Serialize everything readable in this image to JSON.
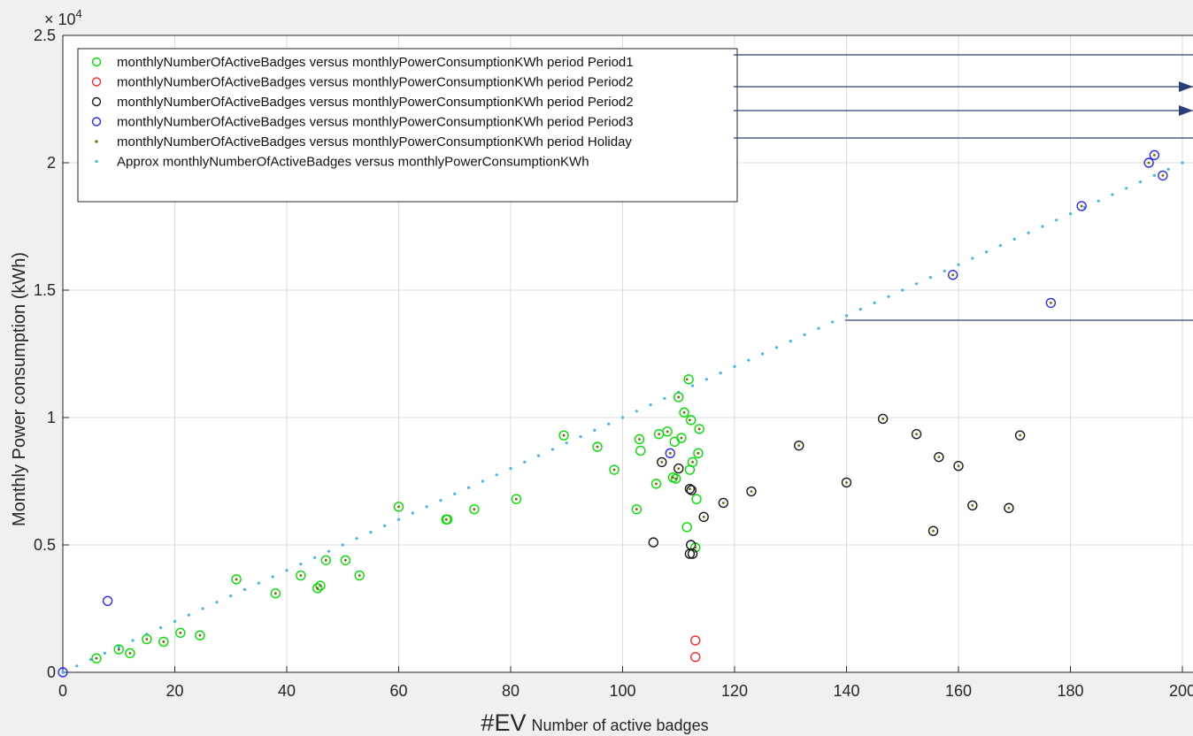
{
  "chart_data": {
    "type": "scatter",
    "xlabel_prefix": "#EV",
    "xlabel": "Number of active badges",
    "ylabel": "Monthly Power consumption (kWh)",
    "y_exponent_label": "× 10",
    "y_exponent_power": "4",
    "xlim": [
      0,
      200
    ],
    "ylim": [
      0,
      25000
    ],
    "x_ticks": [
      0,
      20,
      40,
      60,
      80,
      100,
      120,
      140,
      160,
      180,
      200
    ],
    "x_tick_labels": [
      "0",
      "20",
      "40",
      "60",
      "80",
      "100",
      "120",
      "140",
      "160",
      "180",
      "200"
    ],
    "y_ticks": [
      0,
      5000,
      10000,
      15000,
      20000,
      25000
    ],
    "y_tick_labels": [
      "0",
      "0.5",
      "1",
      "1.5",
      "2",
      "2.5"
    ],
    "grid": true,
    "legend_position": "top-left",
    "series": [
      {
        "name": "monthlyNumberOfActiveBadges versus monthlyPowerConsumptionKWh period Period1",
        "marker": "circle",
        "color": "#00e000",
        "x": [
          6,
          10,
          12,
          15,
          18,
          21,
          24.5,
          31,
          38,
          42.5,
          45.5,
          46,
          47,
          50.5,
          53,
          60,
          68.5,
          68.7,
          73.5,
          81,
          89.5,
          95.5,
          98.5,
          102.5,
          103,
          103.2,
          106,
          106.5,
          108,
          109,
          109.3,
          109.5,
          110,
          110.5,
          111,
          111.5,
          111.8,
          112,
          112.2,
          112.5,
          113,
          113.2,
          113.5,
          113.7
        ],
        "y": [
          550,
          900,
          750,
          1300,
          1200,
          1550,
          1450,
          3650,
          3100,
          3800,
          3300,
          3400,
          4400,
          4400,
          3800,
          6500,
          6000,
          6000,
          6400,
          6800,
          9300,
          8850,
          7950,
          6400,
          9150,
          8700,
          7400,
          9350,
          9450,
          7650,
          9050,
          7600,
          10800,
          9200,
          10200,
          5700,
          11500,
          7950,
          9900,
          8250,
          4900,
          6800,
          8600,
          9550
        ]
      },
      {
        "name": "monthlyNumberOfActiveBadges versus monthlyPowerConsumptionKWh period Period2",
        "marker": "circle",
        "color": "#ff2a2a",
        "x": [
          113,
          113
        ],
        "y": [
          1250,
          600
        ]
      },
      {
        "name": "monthlyNumberOfActiveBadges versus monthlyPowerConsumptionKWh period Period2",
        "marker": "circle",
        "color": "#1a1a1a",
        "x": [
          105.5,
          107,
          110,
          112,
          112.3,
          112.2,
          112,
          112.5,
          114.5,
          118,
          123,
          131.5,
          140,
          146.5,
          152.5,
          155.5,
          156.5,
          160,
          162.5,
          169,
          171
        ],
        "y": [
          5100,
          8250,
          8000,
          7200,
          7150,
          5000,
          4650,
          4650,
          6100,
          6650,
          7100,
          8900,
          7450,
          9950,
          9350,
          5550,
          8450,
          8100,
          6550,
          6450,
          9300
        ]
      },
      {
        "name": "monthlyNumberOfActiveBadges versus monthlyPowerConsumptionKWh period Period3",
        "marker": "circle",
        "color": "#2a2aff",
        "x": [
          0,
          8,
          108.5,
          159,
          176.5,
          182,
          194,
          195,
          196.5
        ],
        "y": [
          0,
          2800,
          8600,
          15600,
          14500,
          18300,
          20000,
          20300,
          19500
        ]
      },
      {
        "name": "monthlyNumberOfActiveBadges versus monthlyPowerConsumptionKWh period Holiday",
        "marker": "dot",
        "color": "#6b6b00",
        "x": [
          6,
          10,
          12,
          15,
          18,
          21,
          24.5,
          31,
          38,
          42.5,
          45.5,
          46,
          47,
          50.5,
          53,
          60,
          68.5,
          73.5,
          81,
          89.5,
          95.5,
          98.5,
          102.5,
          103,
          106,
          106.5,
          108,
          109,
          109.5,
          110,
          110.5,
          111,
          111.5,
          112,
          112.5,
          113,
          113.5,
          113.7,
          107,
          110,
          112,
          114.5,
          118,
          123,
          131.5,
          140,
          146.5,
          152.5,
          155.5,
          156.5,
          160,
          162.5,
          169,
          171,
          108.5,
          159,
          176.5,
          182,
          194,
          195,
          196.5
        ],
        "y": [
          550,
          900,
          750,
          1300,
          1200,
          1550,
          1450,
          3650,
          3100,
          3800,
          3300,
          3400,
          4400,
          4400,
          3800,
          6500,
          6000,
          6400,
          6800,
          9300,
          8850,
          7950,
          6400,
          9150,
          7400,
          9350,
          9450,
          7650,
          7600,
          10800,
          9200,
          10200,
          11500,
          9900,
          8250,
          4900,
          8600,
          9550,
          8250,
          8000,
          7200,
          6100,
          6650,
          7100,
          8900,
          7450,
          9950,
          9350,
          5550,
          8450,
          8100,
          6550,
          6450,
          9300,
          8600,
          15600,
          14500,
          18300,
          20000,
          20300,
          19500
        ]
      },
      {
        "name": "Approx monthlyNumberOfActiveBadges versus monthlyPowerConsumptionKWh",
        "marker": "dotted-line",
        "color": "#3fb6f0",
        "x": [
          0,
          200
        ],
        "y": [
          0,
          20000
        ]
      }
    ]
  }
}
